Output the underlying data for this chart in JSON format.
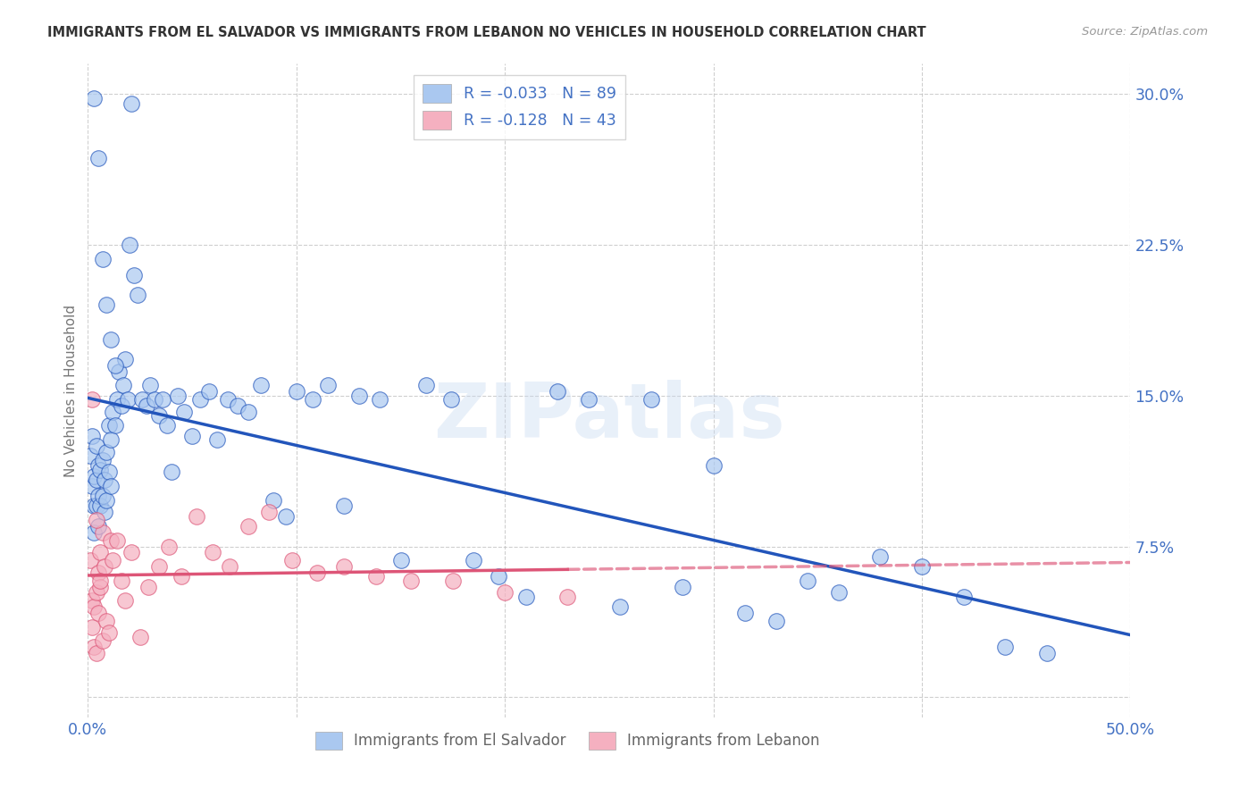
{
  "title": "IMMIGRANTS FROM EL SALVADOR VS IMMIGRANTS FROM LEBANON NO VEHICLES IN HOUSEHOLD CORRELATION CHART",
  "source": "Source: ZipAtlas.com",
  "ylabel": "No Vehicles in Household",
  "xlim": [
    0.0,
    0.5
  ],
  "ylim": [
    -0.01,
    0.315
  ],
  "xticks": [
    0.0,
    0.1,
    0.2,
    0.3,
    0.4,
    0.5
  ],
  "xticklabels": [
    "0.0%",
    "",
    "",
    "",
    "",
    "50.0%"
  ],
  "yticks": [
    0.0,
    0.075,
    0.15,
    0.225,
    0.3
  ],
  "yticklabels": [
    "",
    "7.5%",
    "15.0%",
    "22.5%",
    "30.0%"
  ],
  "legend_labels": [
    "Immigrants from El Salvador",
    "Immigrants from Lebanon"
  ],
  "legend_R": [
    -0.033,
    -0.128
  ],
  "legend_N": [
    89,
    43
  ],
  "blue_color": "#aac8f0",
  "pink_color": "#f5b0c0",
  "blue_line_color": "#2255bb",
  "pink_line_color": "#dd5577",
  "watermark": "ZIPatlas",
  "el_salvador_x": [
    0.001,
    0.002,
    0.002,
    0.003,
    0.003,
    0.003,
    0.004,
    0.004,
    0.004,
    0.005,
    0.005,
    0.005,
    0.006,
    0.006,
    0.007,
    0.007,
    0.008,
    0.008,
    0.009,
    0.009,
    0.01,
    0.01,
    0.011,
    0.011,
    0.012,
    0.013,
    0.014,
    0.015,
    0.016,
    0.017,
    0.018,
    0.019,
    0.02,
    0.022,
    0.024,
    0.026,
    0.028,
    0.03,
    0.032,
    0.034,
    0.036,
    0.038,
    0.04,
    0.043,
    0.046,
    0.05,
    0.054,
    0.058,
    0.062,
    0.067,
    0.072,
    0.077,
    0.083,
    0.089,
    0.095,
    0.1,
    0.108,
    0.115,
    0.123,
    0.13,
    0.14,
    0.15,
    0.162,
    0.174,
    0.185,
    0.197,
    0.21,
    0.225,
    0.24,
    0.255,
    0.27,
    0.285,
    0.3,
    0.315,
    0.33,
    0.345,
    0.36,
    0.38,
    0.4,
    0.42,
    0.44,
    0.46,
    0.003,
    0.005,
    0.007,
    0.009,
    0.011,
    0.013,
    0.021
  ],
  "el_salvador_y": [
    0.12,
    0.13,
    0.105,
    0.11,
    0.095,
    0.082,
    0.125,
    0.108,
    0.095,
    0.115,
    0.1,
    0.085,
    0.113,
    0.095,
    0.118,
    0.1,
    0.108,
    0.092,
    0.122,
    0.098,
    0.135,
    0.112,
    0.128,
    0.105,
    0.142,
    0.135,
    0.148,
    0.162,
    0.145,
    0.155,
    0.168,
    0.148,
    0.225,
    0.21,
    0.2,
    0.148,
    0.145,
    0.155,
    0.148,
    0.14,
    0.148,
    0.135,
    0.112,
    0.15,
    0.142,
    0.13,
    0.148,
    0.152,
    0.128,
    0.148,
    0.145,
    0.142,
    0.155,
    0.098,
    0.09,
    0.152,
    0.148,
    0.155,
    0.095,
    0.15,
    0.148,
    0.068,
    0.155,
    0.148,
    0.068,
    0.06,
    0.05,
    0.152,
    0.148,
    0.045,
    0.148,
    0.055,
    0.115,
    0.042,
    0.038,
    0.058,
    0.052,
    0.07,
    0.065,
    0.05,
    0.025,
    0.022,
    0.298,
    0.268,
    0.218,
    0.195,
    0.178,
    0.165,
    0.295
  ],
  "lebanon_x": [
    0.001,
    0.002,
    0.002,
    0.003,
    0.003,
    0.004,
    0.004,
    0.005,
    0.005,
    0.006,
    0.006,
    0.007,
    0.007,
    0.008,
    0.009,
    0.01,
    0.011,
    0.012,
    0.014,
    0.016,
    0.018,
    0.021,
    0.025,
    0.029,
    0.034,
    0.039,
    0.045,
    0.052,
    0.06,
    0.068,
    0.077,
    0.087,
    0.098,
    0.11,
    0.123,
    0.138,
    0.155,
    0.175,
    0.2,
    0.23,
    0.002,
    0.004,
    0.006
  ],
  "lebanon_y": [
    0.068,
    0.048,
    0.035,
    0.045,
    0.025,
    0.052,
    0.022,
    0.062,
    0.042,
    0.072,
    0.055,
    0.028,
    0.082,
    0.065,
    0.038,
    0.032,
    0.078,
    0.068,
    0.078,
    0.058,
    0.048,
    0.072,
    0.03,
    0.055,
    0.065,
    0.075,
    0.06,
    0.09,
    0.072,
    0.065,
    0.085,
    0.092,
    0.068,
    0.062,
    0.065,
    0.06,
    0.058,
    0.058,
    0.052,
    0.05,
    0.148,
    0.088,
    0.058
  ]
}
